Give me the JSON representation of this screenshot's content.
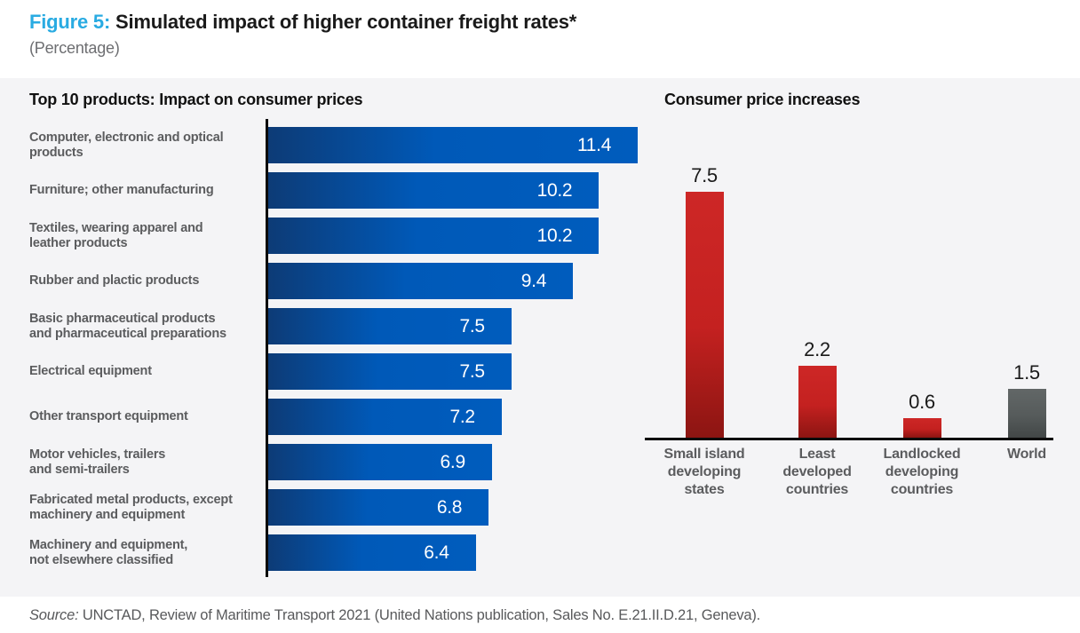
{
  "header": {
    "figure_label": "Figure 5:",
    "title": " Simulated impact of higher container freight rates*",
    "subtitle": "(Percentage)"
  },
  "footer": {
    "source_label": "Source:",
    "source_text": " UNCTAD, Review of Maritime Transport 2021 (United Nations publication, Sales No. E.21.II.D.21, Geneva)."
  },
  "colors": {
    "figure_label_blue": "#29abe2",
    "panel_background": "#f4f4f6",
    "bar_blue": "#0059b8",
    "bar_blue_dark": "#0d3b76",
    "bar_red": "#c42120",
    "bar_red_dark": "#8c1512",
    "bar_gray": "#565b5b",
    "category_label_gray": "#5b5c5e",
    "axis_black": "#0a0a0a"
  },
  "chart_data": [
    {
      "type": "bar",
      "orientation": "horizontal",
      "title": "Top 10 products: Impact on consumer prices",
      "unit": "percent",
      "xlim": [
        0,
        12
      ],
      "grid": false,
      "bar_color": "blue gradient (dark navy at axis to bright blue)",
      "value_labels": "white, inside bar at right end",
      "categories": [
        "Computer, electronic and optical\nproducts",
        "Furniture; other manufacturing",
        "Textiles, wearing apparel and\nleather products",
        "Rubber and plactic products",
        "Basic pharmaceutical products\nand pharmaceutical preparations",
        "Electrical equipment",
        "Other transport equipment",
        "Motor vehicles, trailers\nand semi-trailers",
        "Fabricated metal products, except\nmachinery and equipment",
        "Machinery and equipment,\nnot elsewhere classified"
      ],
      "values": [
        11.4,
        10.2,
        10.2,
        9.4,
        7.5,
        7.5,
        7.2,
        6.9,
        6.8,
        6.4
      ]
    },
    {
      "type": "bar",
      "orientation": "vertical",
      "title": "Consumer price increases",
      "unit": "percent",
      "ylim": [
        0,
        8
      ],
      "grid": false,
      "value_labels": "black, above bars",
      "categories": [
        "Small island\ndeveloping\nstates",
        "Least\ndeveloped\ncountries",
        "Landlocked\ndeveloping\ncountries",
        "World"
      ],
      "values": [
        7.5,
        2.2,
        0.6,
        1.5
      ],
      "bar_colors": [
        "red",
        "red",
        "red",
        "gray"
      ]
    }
  ]
}
